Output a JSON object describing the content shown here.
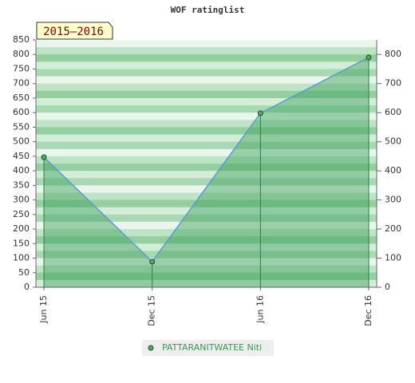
{
  "chart_data": {
    "type": "line",
    "title": "WOF ratinglist",
    "annotation": "2015–2016",
    "categories": [
      "Jun 15",
      "Dec 15",
      "Jun 16",
      "Dec 16"
    ],
    "series": [
      {
        "name": "PATTARANITWATEE Niti",
        "color": "#5b9bd5",
        "values": [
          447,
          88,
          598,
          790
        ]
      }
    ],
    "ylim": [
      0,
      850
    ],
    "yticks": [
      0,
      50,
      100,
      150,
      200,
      250,
      300,
      350,
      400,
      450,
      500,
      550,
      600,
      650,
      700,
      750,
      800,
      850
    ],
    "y2lim": [
      0,
      850
    ],
    "y2ticks": [
      0,
      100,
      200,
      300,
      400,
      500,
      600,
      700,
      800
    ]
  }
}
